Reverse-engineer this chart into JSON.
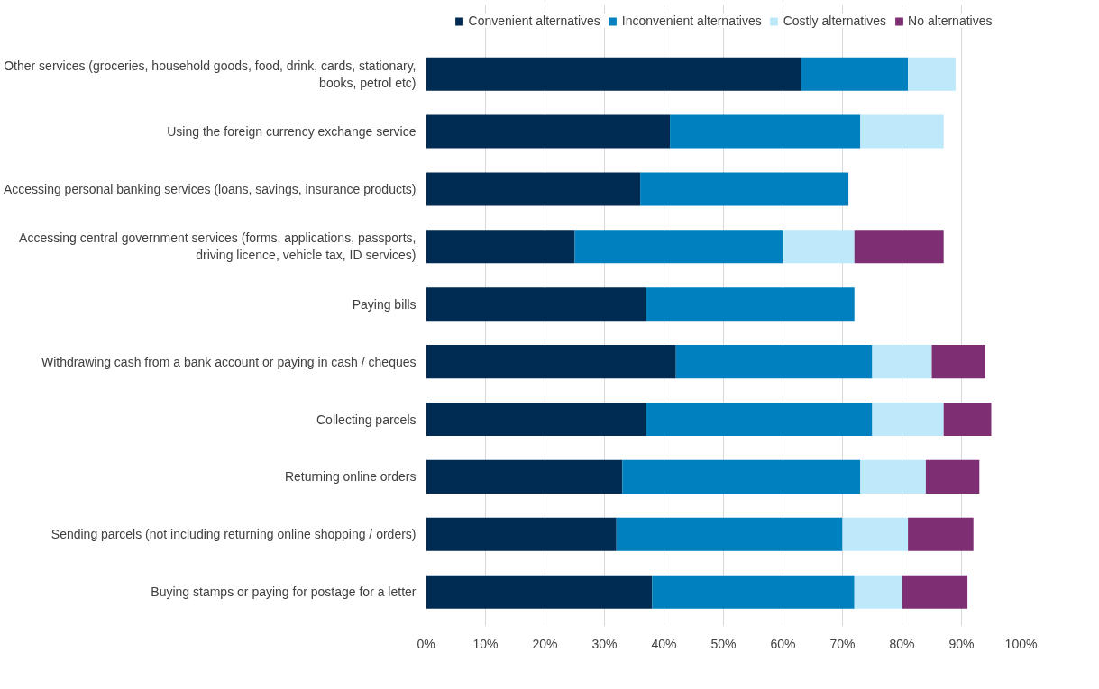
{
  "chart_data": {
    "type": "bar",
    "orientation": "horizontal",
    "stacked": true,
    "categories": [
      "Other services (groceries, household goods, food, drink, cards, stationary,\nbooks, petrol etc)",
      "Using the foreign currency exchange service",
      "Accessing personal banking services (loans, savings, insurance products)",
      "Accessing central government services (forms, applications, passports,\ndriving licence, vehicle tax, ID services)",
      "Paying bills",
      "Withdrawing cash from a bank account or paying in cash / cheques",
      "Collecting parcels",
      "Returning online orders",
      "Sending parcels (not including returning online shopping / orders)",
      "Buying stamps or paying for postage for a letter"
    ],
    "series": [
      {
        "name": "Convenient alternatives",
        "color": "#002b52",
        "values": [
          63,
          41,
          36,
          25,
          37,
          42,
          37,
          33,
          32,
          38
        ]
      },
      {
        "name": "Inconvenient alternatives",
        "color": "#0080bf",
        "values": [
          18,
          32,
          35,
          35,
          35,
          33,
          38,
          40,
          38,
          34
        ]
      },
      {
        "name": "Costly alternatives",
        "color": "#bde9fb",
        "values": [
          8,
          14,
          null,
          12,
          null,
          10,
          12,
          11,
          11,
          8
        ]
      },
      {
        "name": "No alternatives",
        "color": "#7e2f74",
        "values": [
          null,
          null,
          null,
          15,
          null,
          9,
          8,
          9,
          11,
          11
        ]
      }
    ],
    "xlim": [
      0,
      100
    ],
    "xticks": [
      {
        "value": 0,
        "label": "0%"
      },
      {
        "value": 10,
        "label": "10%"
      },
      {
        "value": 20,
        "label": "20%"
      },
      {
        "value": 30,
        "label": "30%"
      },
      {
        "value": 40,
        "label": "40%"
      },
      {
        "value": 50,
        "label": "50%"
      },
      {
        "value": 60,
        "label": "60%"
      },
      {
        "value": 70,
        "label": "70%"
      },
      {
        "value": 80,
        "label": "80%"
      },
      {
        "value": 90,
        "label": "90%"
      },
      {
        "value": 100,
        "label": "100%"
      }
    ],
    "grid": "x",
    "legend": "top"
  }
}
